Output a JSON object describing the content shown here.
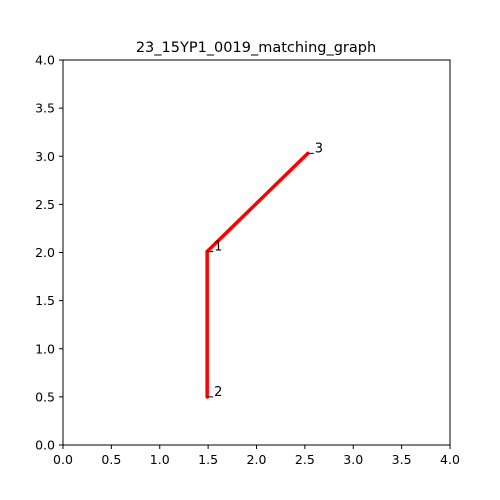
{
  "chart_data": {
    "type": "line",
    "title": "23_15YP1_0019_matching_graph",
    "xlabel": "",
    "ylabel": "",
    "xlim": [
      0,
      4
    ],
    "ylim": [
      0,
      4
    ],
    "xticks": [
      "0.0",
      "0.5",
      "1.0",
      "1.5",
      "2.0",
      "2.5",
      "3.0",
      "3.5",
      "4.0"
    ],
    "yticks": [
      "0.0",
      "0.5",
      "1.0",
      "1.5",
      "2.0",
      "2.5",
      "3.0",
      "3.5",
      "4.0"
    ],
    "grid": false,
    "edge_color": "#ff0000",
    "nodes": [
      {
        "label": "1",
        "x": 1.49,
        "y": 2.01
      },
      {
        "label": "2",
        "x": 1.49,
        "y": 0.5
      },
      {
        "label": "3",
        "x": 2.53,
        "y": 3.03
      }
    ],
    "edges": [
      {
        "from": "1",
        "to": "3"
      },
      {
        "from": "1",
        "to": "2"
      }
    ]
  }
}
